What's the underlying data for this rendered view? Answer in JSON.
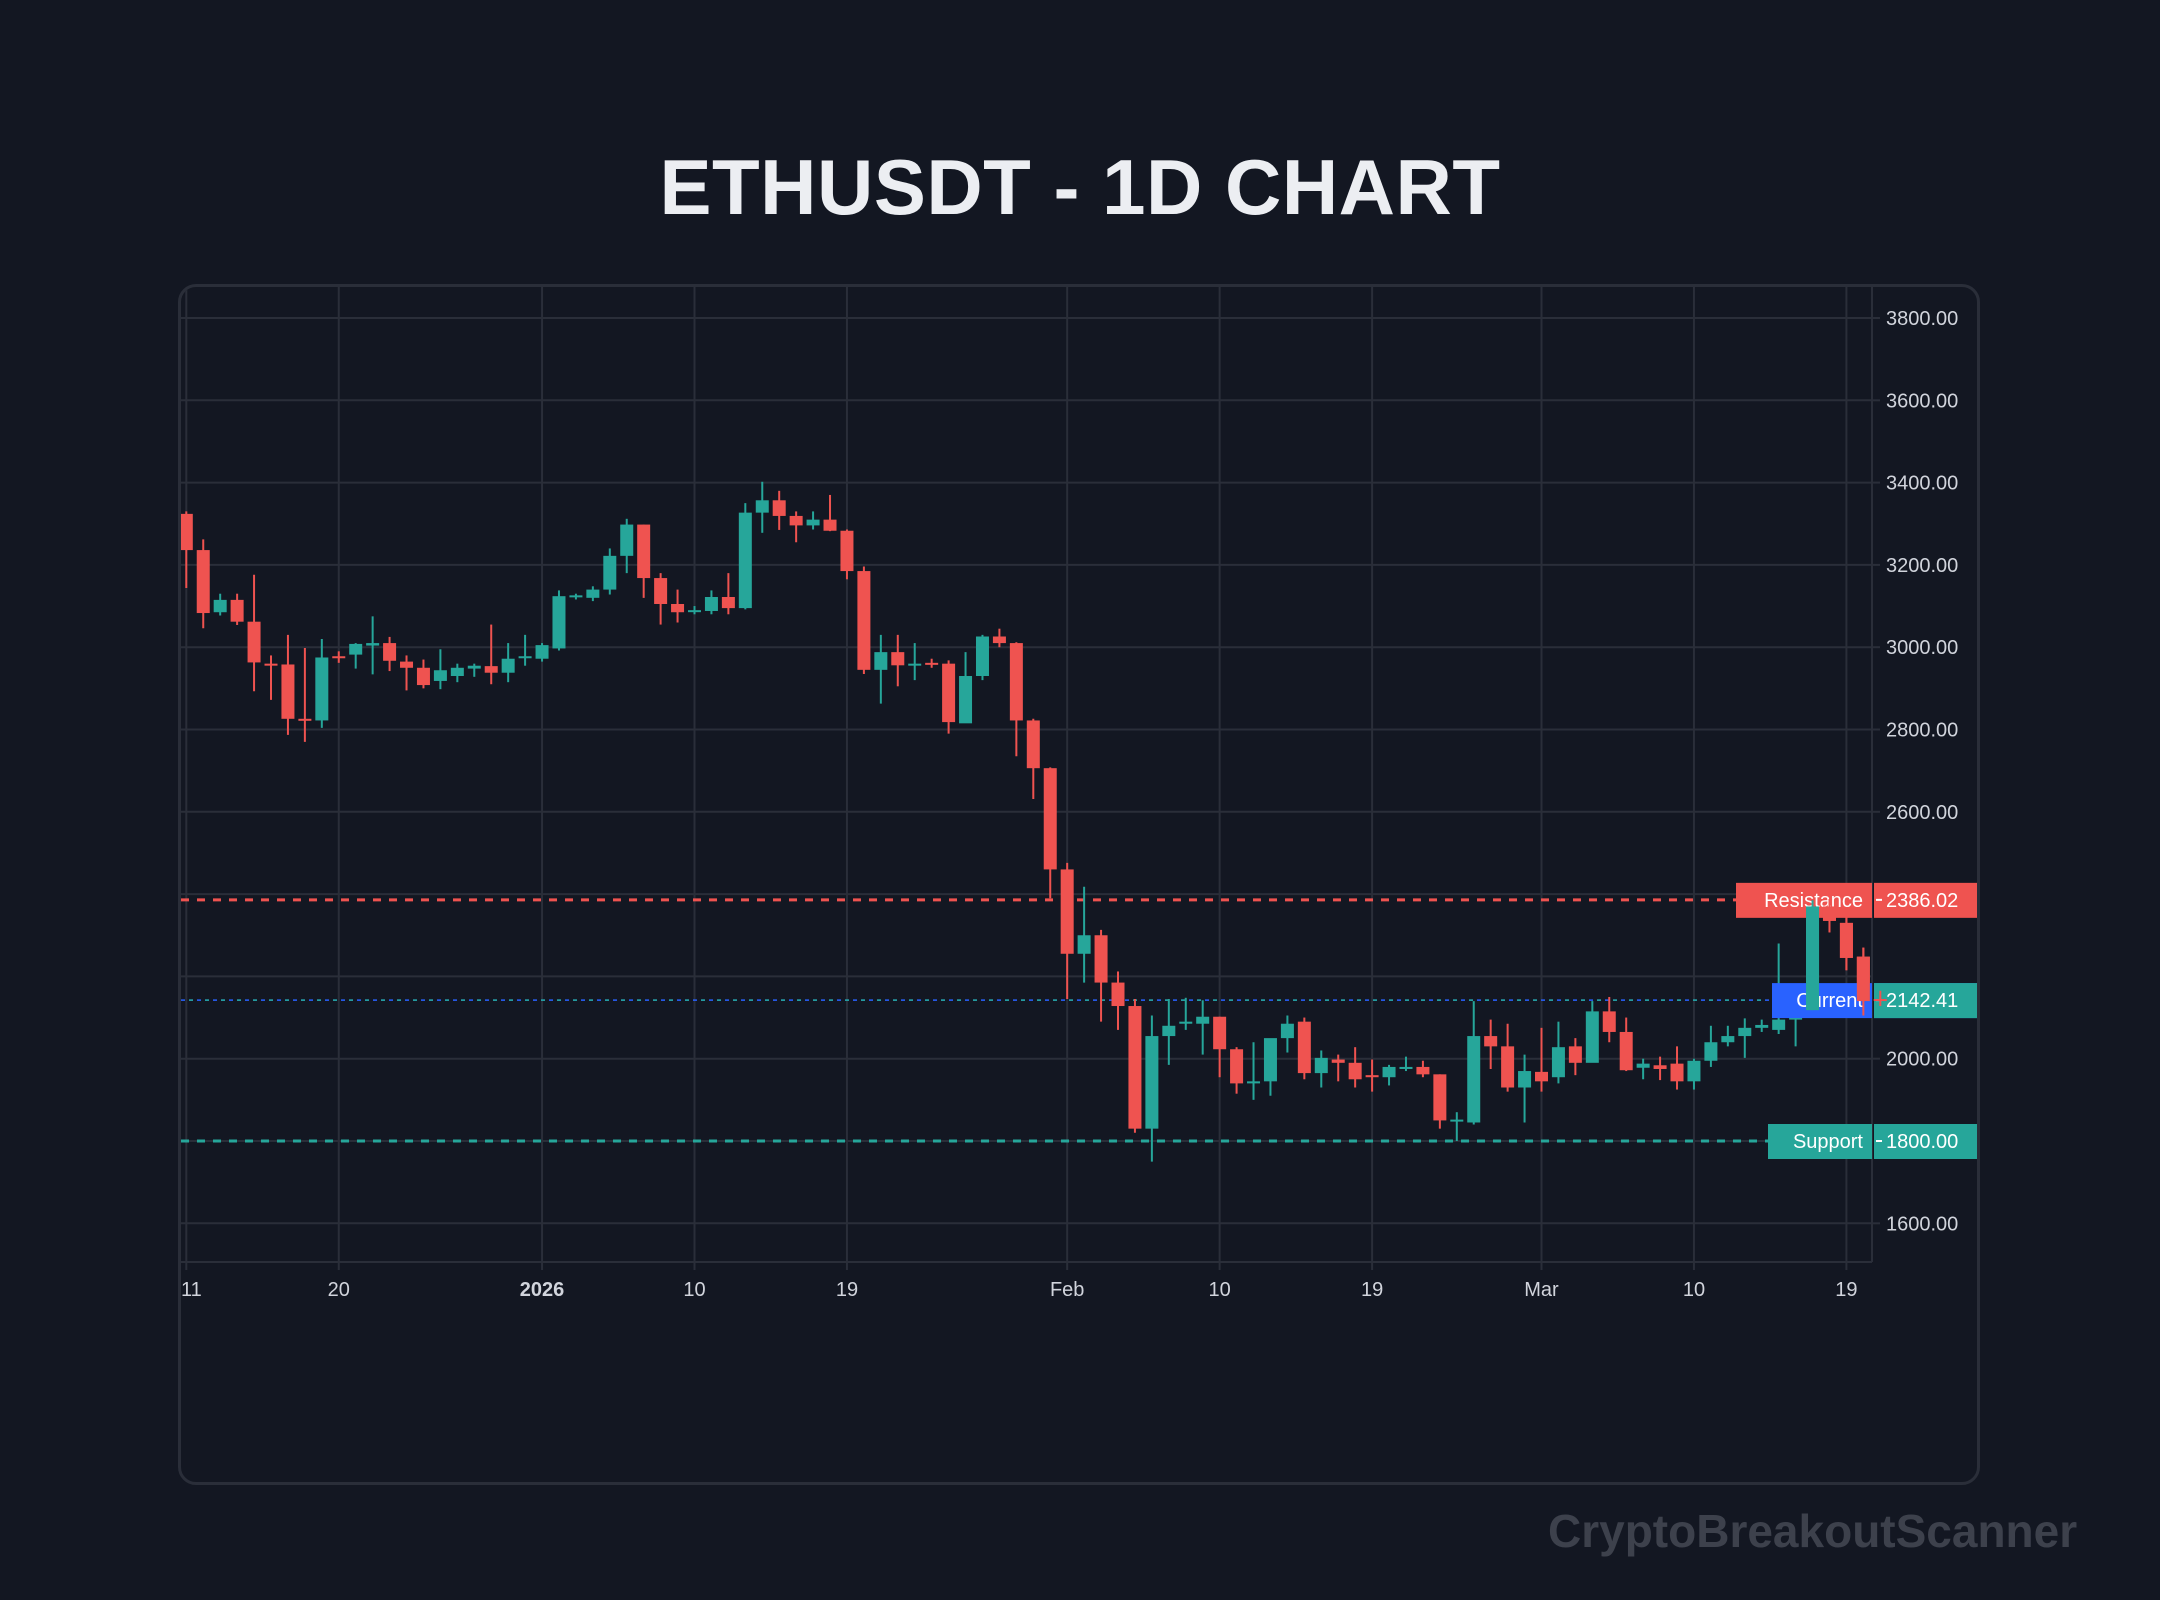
{
  "header": {
    "title": "ETHUSDT - 1D CHART"
  },
  "watermark": "CryptoBreakoutScanner",
  "colors": {
    "background": "#131722",
    "grid": "#2a2e39",
    "up": "#26a69a",
    "down": "#ef5350",
    "resistance": "#ef5350",
    "support": "#26a69a",
    "current": "#2962ff",
    "text": "#d1d4dc",
    "title": "#eceef2"
  },
  "levels": {
    "resistance": {
      "label": "Resistance",
      "value": "2386.02"
    },
    "current": {
      "label": "Current",
      "value": "2142.41"
    },
    "last_price": {
      "value": "2142.41"
    },
    "support": {
      "label": "Support",
      "value": "1800.00"
    }
  },
  "chart_data": {
    "type": "candlestick",
    "title": "ETHUSDT - 1D CHART",
    "symbol": "ETHUSDT",
    "interval": "1D",
    "xlabel": "",
    "ylabel": "",
    "ylim": [
      1500,
      3880
    ],
    "y_ticks": [
      "3800.00",
      "3600.00",
      "3400.00",
      "3200.00",
      "3000.00",
      "2800.00",
      "2600.00",
      "2000.00",
      "1600.00"
    ],
    "x_ticks": [
      {
        "label": "11",
        "index": 0,
        "bold": false
      },
      {
        "label": "20",
        "index": 9,
        "bold": false
      },
      {
        "label": "2026",
        "index": 21,
        "bold": true
      },
      {
        "label": "10",
        "index": 30,
        "bold": false
      },
      {
        "label": "19",
        "index": 39,
        "bold": false
      },
      {
        "label": "Feb",
        "index": 52,
        "bold": false
      },
      {
        "label": "10",
        "index": 61,
        "bold": false
      },
      {
        "label": "19",
        "index": 70,
        "bold": false
      },
      {
        "label": "Mar",
        "index": 80,
        "bold": false
      },
      {
        "label": "10",
        "index": 89,
        "bold": false
      },
      {
        "label": "19",
        "index": 98,
        "bold": false
      }
    ],
    "horizontal_lines": [
      {
        "name": "Resistance",
        "value": 2386.02,
        "style": "dashed",
        "color": "#ef5350"
      },
      {
        "name": "Current",
        "value": 2142.41,
        "style": "dotted",
        "color": "#2962ff"
      },
      {
        "name": "Support",
        "value": 1800.0,
        "style": "dashed",
        "color": "#26a69a"
      }
    ],
    "grid": true,
    "ohlc_columns": [
      "open",
      "high",
      "low",
      "close"
    ],
    "candles": [
      [
        3324,
        3330,
        3144,
        3236
      ],
      [
        3236,
        3262,
        3046,
        3083
      ],
      [
        3085,
        3130,
        3077,
        3115
      ],
      [
        3115,
        3130,
        3054,
        3062
      ],
      [
        3062,
        3176,
        2893,
        2963
      ],
      [
        2960,
        2980,
        2872,
        2958
      ],
      [
        2958,
        3030,
        2787,
        2826
      ],
      [
        2826,
        2998,
        2770,
        2822
      ],
      [
        2822,
        3020,
        2804,
        2975
      ],
      [
        2978,
        2990,
        2962,
        2975
      ],
      [
        2982,
        3010,
        2948,
        3008
      ],
      [
        3004,
        3075,
        2934,
        3010
      ],
      [
        3010,
        3025,
        2942,
        2967
      ],
      [
        2965,
        2980,
        2895,
        2950
      ],
      [
        2950,
        2970,
        2900,
        2908
      ],
      [
        2918,
        2995,
        2898,
        2944
      ],
      [
        2930,
        2960,
        2915,
        2950
      ],
      [
        2948,
        2960,
        2928,
        2955
      ],
      [
        2954,
        3055,
        2910,
        2938
      ],
      [
        2938,
        3010,
        2915,
        2972
      ],
      [
        2978,
        3030,
        2955,
        2978
      ],
      [
        2972,
        3010,
        2965,
        3005
      ],
      [
        2997,
        3138,
        2992,
        3124
      ],
      [
        3124,
        3130,
        3116,
        3126
      ],
      [
        3120,
        3148,
        3112,
        3140
      ],
      [
        3140,
        3240,
        3128,
        3222
      ],
      [
        3222,
        3312,
        3180,
        3298
      ],
      [
        3298,
        3298,
        3120,
        3168
      ],
      [
        3168,
        3180,
        3055,
        3105
      ],
      [
        3105,
        3140,
        3060,
        3085
      ],
      [
        3090,
        3100,
        3080,
        3090
      ],
      [
        3088,
        3138,
        3080,
        3122
      ],
      [
        3122,
        3180,
        3080,
        3095
      ],
      [
        3095,
        3350,
        3092,
        3327
      ],
      [
        3327,
        3402,
        3278,
        3357
      ],
      [
        3357,
        3380,
        3285,
        3319
      ],
      [
        3319,
        3330,
        3255,
        3296
      ],
      [
        3296,
        3330,
        3286,
        3310
      ],
      [
        3310,
        3370,
        3282,
        3283
      ],
      [
        3283,
        3286,
        3165,
        3185
      ],
      [
        3185,
        3196,
        2935,
        2945
      ],
      [
        2945,
        3030,
        2863,
        2988
      ],
      [
        2988,
        3030,
        2905,
        2956
      ],
      [
        2958,
        3010,
        2920,
        2960
      ],
      [
        2962,
        2972,
        2950,
        2960
      ],
      [
        2960,
        2968,
        2790,
        2818
      ],
      [
        2815,
        2988,
        2818,
        2930
      ],
      [
        2930,
        3030,
        2920,
        3026
      ],
      [
        3026,
        3045,
        3000,
        3010
      ],
      [
        3010,
        3012,
        2735,
        2822
      ],
      [
        2822,
        2826,
        2631,
        2706
      ],
      [
        2706,
        2708,
        2390,
        2460
      ],
      [
        2460,
        2476,
        2145,
        2255
      ],
      [
        2255,
        2418,
        2185,
        2300
      ],
      [
        2300,
        2313,
        2090,
        2185
      ],
      [
        2185,
        2212,
        2070,
        2128
      ],
      [
        2128,
        2145,
        1820,
        1830
      ],
      [
        1830,
        2105,
        1750,
        2055
      ],
      [
        2055,
        2145,
        1985,
        2080
      ],
      [
        2085,
        2148,
        2070,
        2090
      ],
      [
        2085,
        2142,
        2010,
        2102
      ],
      [
        2102,
        2102,
        1955,
        2023
      ],
      [
        2023,
        2028,
        1915,
        1940
      ],
      [
        1940,
        2040,
        1900,
        1945
      ],
      [
        1945,
        2030,
        1910,
        2050
      ],
      [
        2050,
        2105,
        2015,
        2085
      ],
      [
        2090,
        2100,
        1950,
        1965
      ],
      [
        1965,
        2020,
        1930,
        2002
      ],
      [
        1998,
        2010,
        1945,
        1990
      ],
      [
        1990,
        2028,
        1930,
        1950
      ],
      [
        1960,
        1998,
        1920,
        1955
      ],
      [
        1955,
        1985,
        1935,
        1980
      ],
      [
        1975,
        2005,
        1970,
        1980
      ],
      [
        1980,
        1995,
        1955,
        1962
      ],
      [
        1962,
        1962,
        1830,
        1850
      ],
      [
        1852,
        1870,
        1800,
        1852
      ],
      [
        1845,
        2140,
        1840,
        2055
      ],
      [
        2055,
        2095,
        1975,
        2030
      ],
      [
        2030,
        2085,
        1920,
        1930
      ],
      [
        1930,
        2010,
        1845,
        1970
      ],
      [
        1968,
        2075,
        1920,
        1945
      ],
      [
        1955,
        2090,
        1940,
        2028
      ],
      [
        2030,
        2050,
        1960,
        1990
      ],
      [
        1990,
        2140,
        1995,
        2115
      ],
      [
        2115,
        2150,
        2040,
        2065
      ],
      [
        2065,
        2100,
        1970,
        1972
      ],
      [
        1978,
        2000,
        1950,
        1988
      ],
      [
        1984,
        2005,
        1948,
        1975
      ],
      [
        1988,
        2030,
        1925,
        1945
      ],
      [
        1945,
        2000,
        1925,
        1995
      ],
      [
        1995,
        2080,
        1980,
        2040
      ],
      [
        2040,
        2080,
        2030,
        2055
      ],
      [
        2055,
        2098,
        2002,
        2075
      ],
      [
        2075,
        2095,
        2065,
        2082
      ],
      [
        2070,
        2280,
        2060,
        2095
      ],
      [
        2095,
        2115,
        2030,
        2103
      ],
      [
        2118,
        2385,
        2118,
        2370
      ],
      [
        2370,
        2388,
        2307,
        2335
      ],
      [
        2330,
        2345,
        2215,
        2245
      ],
      [
        2248,
        2270,
        2105,
        2140
      ],
      [
        2145,
        2165,
        2128,
        2142
      ]
    ]
  }
}
